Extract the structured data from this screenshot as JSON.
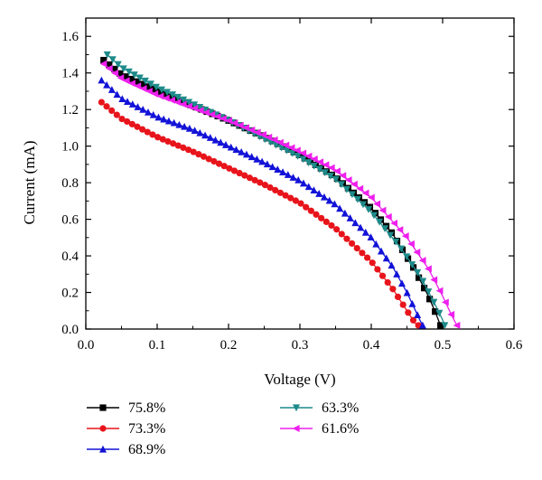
{
  "chart_data": {
    "type": "scatter",
    "title": "",
    "xlabel": "Voltage (V)",
    "ylabel": "Current (mA)",
    "xlim": [
      0.0,
      0.6
    ],
    "ylim": [
      0.0,
      1.7
    ],
    "xticks": [
      "0.0",
      "0.1",
      "0.2",
      "0.3",
      "0.4",
      "0.5",
      "0.6"
    ],
    "yticks": [
      "0.0",
      "0.2",
      "0.4",
      "0.6",
      "0.8",
      "1.0",
      "1.2",
      "1.4",
      "1.6"
    ],
    "grid": false,
    "legend_position": "bottom",
    "series": [
      {
        "name": "75.8%",
        "color": "#000000",
        "marker": "square",
        "x": [
          0.025,
          0.05,
          0.1,
          0.15,
          0.2,
          0.25,
          0.3,
          0.35,
          0.4,
          0.43,
          0.46,
          0.48,
          0.49,
          0.497
        ],
        "y": [
          1.47,
          1.39,
          1.3,
          1.22,
          1.14,
          1.05,
          0.95,
          0.83,
          0.66,
          0.52,
          0.33,
          0.18,
          0.09,
          0.02
        ]
      },
      {
        "name": "73.3%",
        "color": "#e8141b",
        "marker": "circle",
        "x": [
          0.022,
          0.05,
          0.1,
          0.15,
          0.2,
          0.25,
          0.3,
          0.35,
          0.4,
          0.43,
          0.445,
          0.455,
          0.462,
          0.466
        ],
        "y": [
          1.24,
          1.15,
          1.05,
          0.97,
          0.88,
          0.79,
          0.69,
          0.55,
          0.37,
          0.22,
          0.13,
          0.07,
          0.03,
          0.02
        ]
      },
      {
        "name": "68.9%",
        "color": "#1212d8",
        "marker": "triangle-up",
        "x": [
          0.022,
          0.05,
          0.1,
          0.15,
          0.2,
          0.25,
          0.3,
          0.35,
          0.4,
          0.43,
          0.45,
          0.462,
          0.468,
          0.472
        ],
        "y": [
          1.36,
          1.26,
          1.16,
          1.09,
          1.0,
          0.91,
          0.81,
          0.68,
          0.5,
          0.34,
          0.2,
          0.1,
          0.05,
          0.02
        ]
      },
      {
        "name": "63.3%",
        "color": "#1e8a8a",
        "marker": "triangle-down",
        "x": [
          0.03,
          0.05,
          0.1,
          0.15,
          0.2,
          0.25,
          0.3,
          0.35,
          0.4,
          0.44,
          0.47,
          0.49,
          0.5,
          0.503
        ],
        "y": [
          1.5,
          1.43,
          1.32,
          1.23,
          1.14,
          1.04,
          0.94,
          0.82,
          0.64,
          0.45,
          0.28,
          0.13,
          0.05,
          0.02
        ]
      },
      {
        "name": "61.6%",
        "color": "#ee20ee",
        "marker": "triangle-left",
        "x": [
          0.025,
          0.05,
          0.1,
          0.15,
          0.2,
          0.25,
          0.3,
          0.35,
          0.4,
          0.45,
          0.48,
          0.5,
          0.512,
          0.52
        ],
        "y": [
          1.45,
          1.37,
          1.28,
          1.21,
          1.14,
          1.06,
          0.97,
          0.87,
          0.72,
          0.5,
          0.33,
          0.18,
          0.08,
          0.02
        ]
      }
    ]
  }
}
